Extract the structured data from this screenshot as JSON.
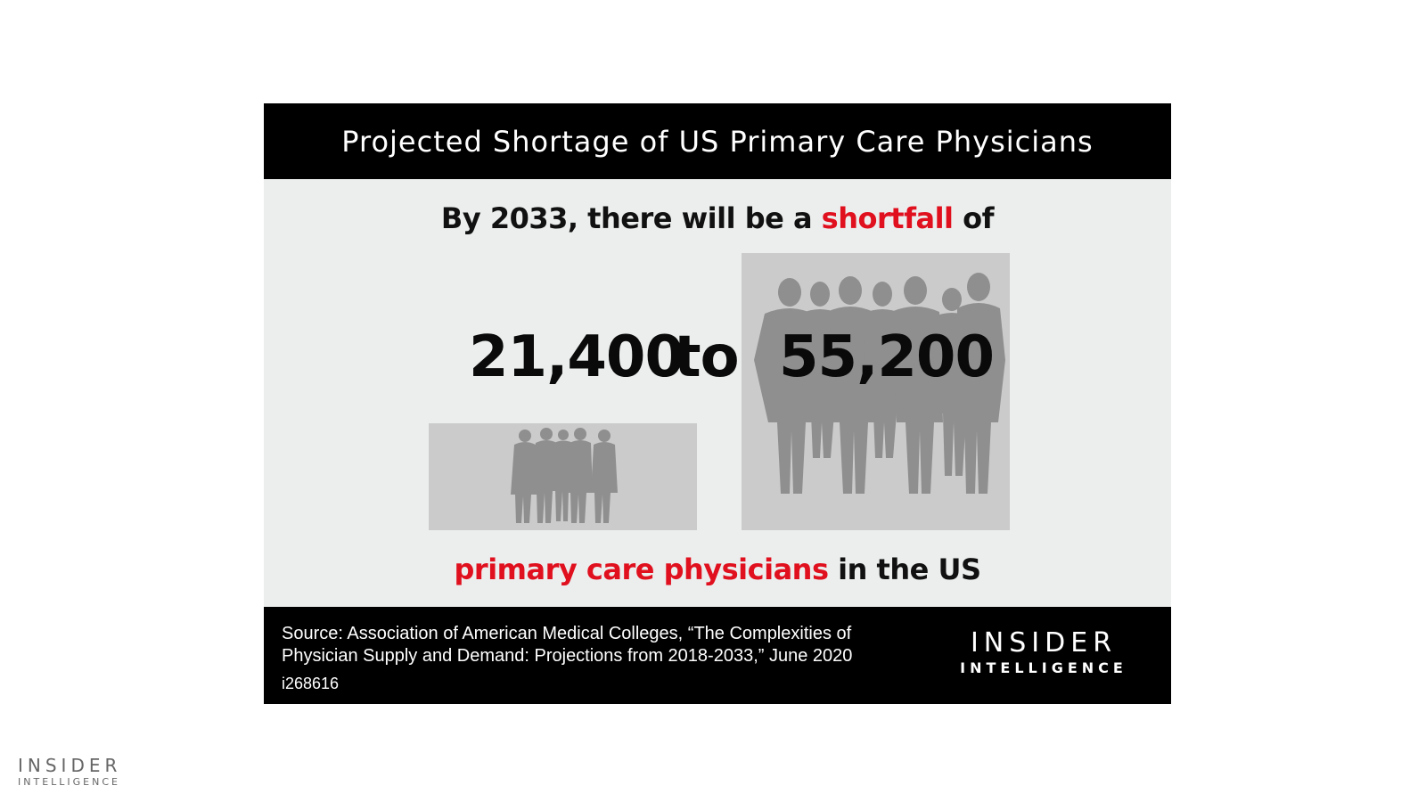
{
  "header": {
    "title": "Projected Shortage of US Primary Care Physicians"
  },
  "intro": {
    "prefix": "By 2033, there will be a ",
    "highlight": "shortfall",
    "suffix": " of"
  },
  "numbers": {
    "low": "21,400",
    "connector": "to",
    "high": "55,200"
  },
  "outro": {
    "highlight": "primary care physicians",
    "suffix": " in the US"
  },
  "footer": {
    "source_line1": "Source: Association of American Medical Colleges, “The Complexities of",
    "source_line2": "Physician Supply and Demand: Projections from 2018-2033,” June 2020",
    "code": "i268616"
  },
  "brand": {
    "line1": "INSIDER",
    "line2": "INTELLIGENCE"
  },
  "colors": {
    "accent": "#e0101e",
    "header_bg": "#000000",
    "panel_bg": "#eceeee",
    "photo_bg": "#cbcbcb",
    "silhouette": "#8f8f8f"
  },
  "icons": {
    "small_group": "people-silhouette-group-icon",
    "large_group": "people-silhouette-group-icon"
  }
}
